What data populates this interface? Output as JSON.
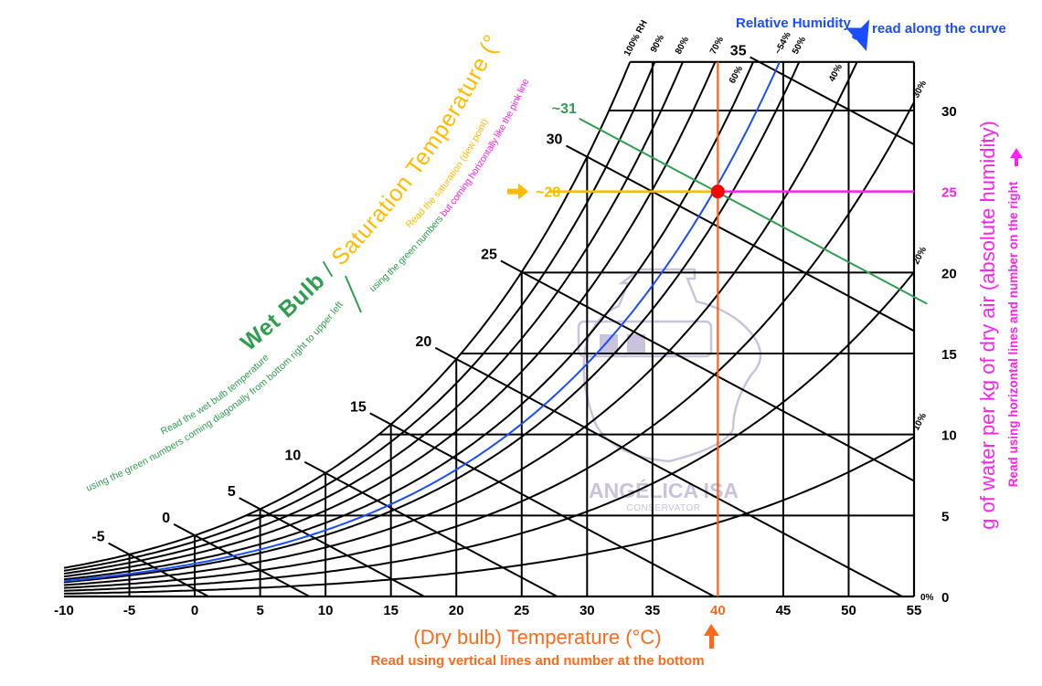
{
  "chart_data": {
    "type": "line",
    "subtype": "psychrometric",
    "xlabel": "(Dry bulb) Temperature (°C)",
    "xlabel_note": "Read using vertical lines and number at the bottom",
    "ylabel": "g of water per kg of dry air (absolute humidity)",
    "ylabel_note": "Read using horizontal lines and number on the right",
    "xlim": [
      -10,
      55
    ],
    "ylim": [
      0,
      33
    ],
    "x_ticks": [
      -10,
      -5,
      0,
      5,
      10,
      15,
      20,
      25,
      30,
      35,
      40,
      45,
      50,
      55
    ],
    "y_ticks": [
      0,
      5,
      10,
      15,
      20,
      25,
      30
    ],
    "grid": true,
    "rh_title": "Relative Humidity",
    "rh_note": "read along the curve",
    "rh_curves": [
      {
        "label": "100% RH",
        "value": 100
      },
      {
        "label": "90%",
        "value": 90
      },
      {
        "label": "80%",
        "value": 80
      },
      {
        "label": "70%",
        "value": 70
      },
      {
        "label": "60%",
        "value": 60
      },
      {
        "label": "50%",
        "value": 50
      },
      {
        "label": "40%",
        "value": 40
      },
      {
        "label": "30%",
        "value": 30
      },
      {
        "label": "20%",
        "value": 20
      },
      {
        "label": "10%",
        "value": 10
      },
      {
        "label": "0%",
        "value": 0
      }
    ],
    "highlight_rh": {
      "label": "~54%",
      "value": 54
    },
    "wet_bulb_title": {
      "part1": "Wet Bulb",
      "sep": " / ",
      "part2": "Saturation Temperature (°C)"
    },
    "wet_bulb_note": {
      "line1": "Read the wet bulb temperature",
      "line2": "using the green numbers coming diagonally from bottom right to upper left"
    },
    "saturation_note": {
      "line1": "Read the saturation (dew point)",
      "line2a": "using the green numbers ",
      "line2b": "but coming horizontally like the pink line"
    },
    "wet_bulb_lines": [
      -5,
      0,
      5,
      10,
      15,
      20,
      25,
      30,
      35
    ],
    "reading": {
      "dry_bulb": 40,
      "dry_bulb_label": "40",
      "humidity_ratio": 25,
      "humidity_ratio_label": "25",
      "wet_bulb": 31,
      "wet_bulb_label": "~31",
      "dew_point": 28,
      "dew_point_label": "~28",
      "rh_label": "~54%"
    }
  },
  "colors": {
    "grid": "#000000",
    "dry_bulb": "#ff6a1a",
    "wet_bulb": "#2e9e4f",
    "saturation": "#ffbb00",
    "humidity": "#ff22ee",
    "rh": "#1a4dff",
    "point": "#ff0000",
    "watermark": "#c9c0dc"
  },
  "watermark": {
    "name": "ANGÉLICA ISA",
    "subtitle": "CONSERVATOR"
  }
}
